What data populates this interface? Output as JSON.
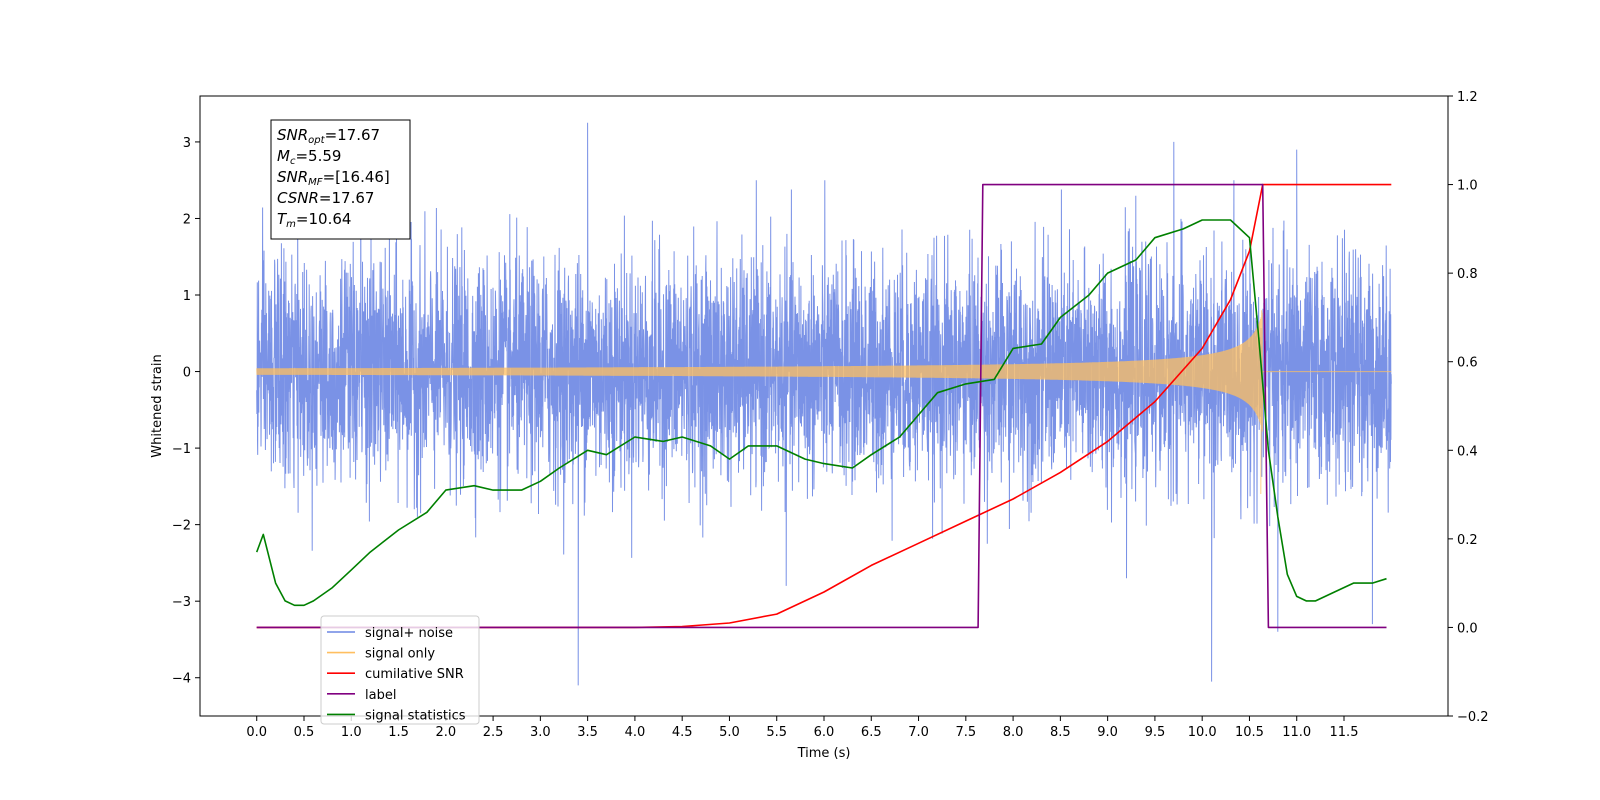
{
  "chart_data": {
    "type": "line",
    "title": "",
    "xlabel": "Time (s)",
    "ylabel": "Whitened strain",
    "y2label": "",
    "xlim": [
      -0.6,
      12.6
    ],
    "ylim": [
      -4.5,
      3.6
    ],
    "y2lim": [
      -0.2,
      1.2
    ],
    "xticks": [
      "0.0",
      "0.5",
      "1.0",
      "1.5",
      "2.0",
      "2.5",
      "3.0",
      "3.5",
      "4.0",
      "4.5",
      "5.0",
      "5.5",
      "6.0",
      "6.5",
      "7.0",
      "7.5",
      "8.0",
      "8.5",
      "9.0",
      "9.5",
      "10.0",
      "10.5",
      "11.0",
      "11.5"
    ],
    "yticks": [
      "−4",
      "−3",
      "−2",
      "−1",
      "0",
      "1",
      "2",
      "3"
    ],
    "y2ticks": [
      "−0.2",
      "0.0",
      "0.2",
      "0.4",
      "0.6",
      "0.8",
      "1.0",
      "1.2"
    ],
    "grid": false,
    "legend_position": "lower-left",
    "noise": {
      "t_start": 0.0,
      "t_end": 12.0,
      "typical_amplitude": 1.6,
      "peaks": [
        [
          1.1,
          2.8
        ],
        [
          3.5,
          3.25
        ],
        [
          3.4,
          -4.1
        ],
        [
          10.1,
          -4.05
        ],
        [
          11.0,
          2.9
        ],
        [
          10.8,
          -3.4
        ],
        [
          11.8,
          -3.3
        ],
        [
          9.7,
          3.0
        ],
        [
          9.2,
          -2.7
        ],
        [
          5.6,
          -2.8
        ]
      ]
    },
    "signal": {
      "t_start": 0.0,
      "t_merge": 10.64,
      "t_end": 12.0,
      "peak_amplitude": 0.8
    },
    "series": [
      {
        "name": "cumilative SNR",
        "axis": "right",
        "color": "#ff0000",
        "x": [
          0.0,
          3.0,
          4.0,
          4.5,
          5.0,
          5.5,
          6.0,
          6.5,
          7.0,
          7.5,
          8.0,
          8.5,
          9.0,
          9.5,
          10.0,
          10.3,
          10.5,
          10.64,
          12.0
        ],
        "y": [
          0.0,
          0.0,
          0.0,
          0.002,
          0.01,
          0.03,
          0.08,
          0.14,
          0.19,
          0.24,
          0.29,
          0.35,
          0.42,
          0.51,
          0.63,
          0.74,
          0.85,
          1.0,
          1.0
        ]
      },
      {
        "name": "label",
        "axis": "right",
        "color": "#800080",
        "x": [
          0.0,
          7.63,
          7.68,
          10.64,
          10.7,
          11.95
        ],
        "y": [
          0.0,
          0.0,
          1.0,
          1.0,
          0.0,
          0.0
        ]
      },
      {
        "name": "signal statistics",
        "axis": "right",
        "color": "#008000",
        "x": [
          0.0,
          0.07,
          0.2,
          0.3,
          0.4,
          0.5,
          0.6,
          0.8,
          1.0,
          1.2,
          1.5,
          1.8,
          2.0,
          2.3,
          2.5,
          2.8,
          3.0,
          3.2,
          3.5,
          3.7,
          4.0,
          4.3,
          4.5,
          4.8,
          5.0,
          5.2,
          5.5,
          5.8,
          6.0,
          6.3,
          6.5,
          6.8,
          7.0,
          7.2,
          7.5,
          7.8,
          8.0,
          8.3,
          8.5,
          8.8,
          9.0,
          9.3,
          9.5,
          9.8,
          10.0,
          10.3,
          10.5,
          10.6,
          10.7,
          10.8,
          10.9,
          11.0,
          11.1,
          11.2,
          11.4,
          11.6,
          11.8,
          11.95
        ],
        "y": [
          0.17,
          0.21,
          0.1,
          0.06,
          0.05,
          0.05,
          0.06,
          0.09,
          0.13,
          0.17,
          0.22,
          0.26,
          0.31,
          0.32,
          0.31,
          0.31,
          0.33,
          0.36,
          0.4,
          0.39,
          0.43,
          0.42,
          0.43,
          0.41,
          0.38,
          0.41,
          0.41,
          0.38,
          0.37,
          0.36,
          0.39,
          0.43,
          0.48,
          0.53,
          0.55,
          0.56,
          0.63,
          0.64,
          0.7,
          0.75,
          0.8,
          0.83,
          0.88,
          0.9,
          0.92,
          0.92,
          0.88,
          0.65,
          0.4,
          0.25,
          0.12,
          0.07,
          0.06,
          0.06,
          0.08,
          0.1,
          0.1,
          0.11
        ]
      }
    ],
    "legend": [
      {
        "label": "signal+ noise",
        "color": "#6b86e3"
      },
      {
        "label": "signal only",
        "color": "#ffbf60"
      },
      {
        "label": "cumilative SNR",
        "color": "#ff0000"
      },
      {
        "label": "label",
        "color": "#800080"
      },
      {
        "label": "signal statistics",
        "color": "#008000"
      }
    ],
    "annotation": [
      {
        "main": "SNR",
        "sub": "opt",
        "rest": "=17.67"
      },
      {
        "main": "M",
        "sub": "c",
        "rest": "=5.59"
      },
      {
        "main": "SNR",
        "sub": "MF",
        "rest": "=[16.46]"
      },
      {
        "main": "CSNR",
        "sub": "",
        "rest": "=17.67"
      },
      {
        "main": "T",
        "sub": "m",
        "rest": "=10.64"
      }
    ]
  }
}
